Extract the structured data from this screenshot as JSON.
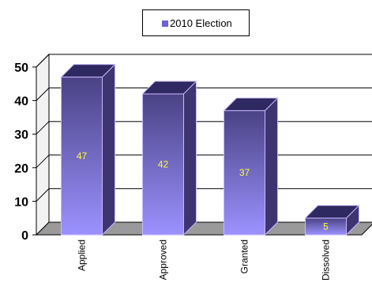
{
  "chart_data": {
    "type": "bar",
    "categories": [
      "Applied",
      "Approved",
      "Granted",
      "Dissolved"
    ],
    "series": [
      {
        "name": "2010 Election",
        "values": [
          47,
          42,
          37,
          5
        ]
      }
    ],
    "ylim": [
      0,
      50
    ],
    "yticks": [
      "0",
      "10",
      "20",
      "30",
      "40",
      "50"
    ],
    "grid": true,
    "legend": "top-center",
    "colors": {
      "bar_top": "#4a4284",
      "bar_bottom": "#9b92ff",
      "bar_side": "#3d3570",
      "bar_cap": "#2e2960",
      "wall": "#ffffff",
      "floor": "#9a9a9a",
      "value_label": "#ffff33",
      "legend_swatch": "#6b63d6"
    }
  },
  "legend": {
    "label": "2010 Election"
  }
}
